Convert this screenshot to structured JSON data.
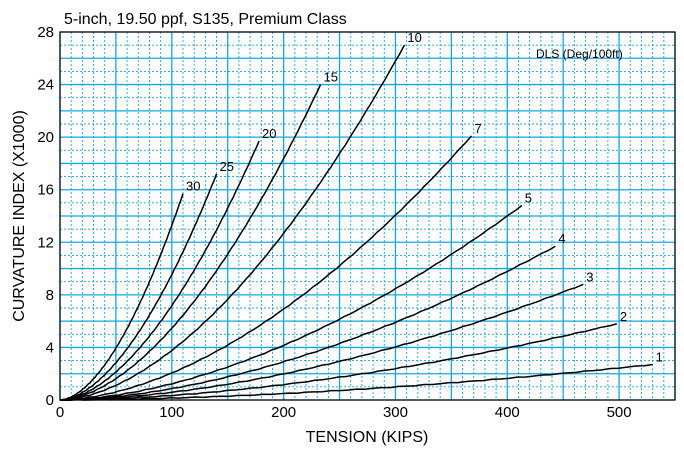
{
  "chart_data": {
    "type": "line",
    "title": "5-inch, 19.50 ppf, S135, Premium Class",
    "xlabel": "TENSION (KIPS)",
    "ylabel": "CURVATURE INDEX (X1000)",
    "legend_title": "DLS (Deg/100ft)",
    "xlim": [
      0,
      550
    ],
    "ylim": [
      0,
      28
    ],
    "x_ticks": [
      0,
      100,
      200,
      300,
      400,
      500
    ],
    "y_ticks": [
      0,
      4,
      8,
      12,
      16,
      20,
      24,
      28
    ],
    "x_minor_step": 10,
    "y_minor_step": 1,
    "grid": true,
    "series": [
      {
        "name": "1",
        "x_max": 530,
        "y_max": 2.7
      },
      {
        "name": "2",
        "x_max": 498,
        "y_max": 5.8
      },
      {
        "name": "3",
        "x_max": 468,
        "y_max": 8.8
      },
      {
        "name": "4",
        "x_max": 443,
        "y_max": 11.7
      },
      {
        "name": "5",
        "x_max": 413,
        "y_max": 14.8
      },
      {
        "name": "7",
        "x_max": 368,
        "y_max": 20.1
      },
      {
        "name": "10",
        "x_max": 308,
        "y_max": 27.0
      },
      {
        "name": "15",
        "x_max": 233,
        "y_max": 24.0
      },
      {
        "name": "20",
        "x_max": 178,
        "y_max": 19.7
      },
      {
        "name": "25",
        "x_max": 140,
        "y_max": 17.2
      },
      {
        "name": "30",
        "x_max": 110,
        "y_max": 15.7
      }
    ]
  }
}
